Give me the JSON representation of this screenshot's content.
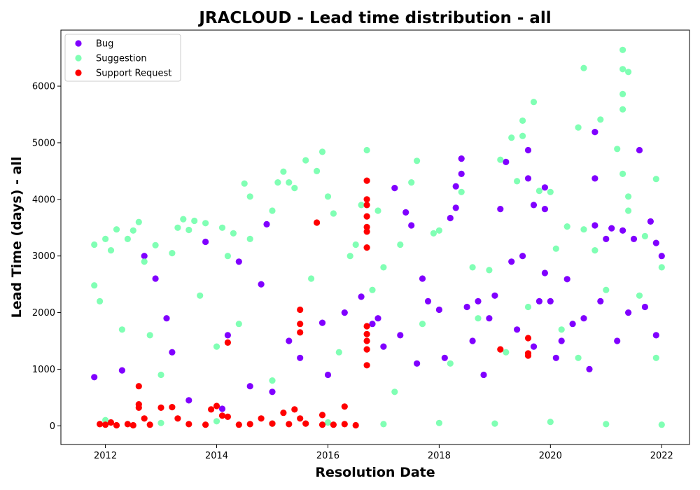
{
  "chart_data": {
    "type": "scatter",
    "title": "JRACLOUD - Lead time distribution - all",
    "xlabel": "Resolution Date",
    "ylabel": "Lead Time (days) - all",
    "xlim": [
      2011.2,
      2022.5
    ],
    "ylim": [
      -330,
      6990
    ],
    "x_ticks": [
      2012,
      2014,
      2016,
      2018,
      2020,
      2022
    ],
    "y_ticks": [
      0,
      1000,
      2000,
      3000,
      4000,
      5000,
      6000
    ],
    "grid": false,
    "legend_position": "upper-left",
    "series": [
      {
        "name": "Bug",
        "color": "#8000ff",
        "points": [
          [
            2011.8,
            860
          ],
          [
            2012.3,
            980
          ],
          [
            2012.7,
            3000
          ],
          [
            2012.9,
            2600
          ],
          [
            2013.1,
            1900
          ],
          [
            2013.2,
            1300
          ],
          [
            2013.8,
            3250
          ],
          [
            2014.2,
            1600
          ],
          [
            2014.4,
            2900
          ],
          [
            2014.8,
            2500
          ],
          [
            2014.9,
            3560
          ],
          [
            2015.3,
            1500
          ],
          [
            2015.9,
            1820
          ],
          [
            2016.3,
            2000
          ],
          [
            2016.6,
            2280
          ],
          [
            2016.9,
            1900
          ],
          [
            2017.2,
            4200
          ],
          [
            2017.4,
            3770
          ],
          [
            2017.5,
            3540
          ],
          [
            2017.7,
            2600
          ],
          [
            2017.8,
            2200
          ],
          [
            2018.0,
            2050
          ],
          [
            2018.2,
            3670
          ],
          [
            2018.3,
            3850
          ],
          [
            2018.3,
            4230
          ],
          [
            2018.4,
            4720
          ],
          [
            2018.4,
            4450
          ],
          [
            2018.5,
            2100
          ],
          [
            2018.7,
            2200
          ],
          [
            2018.9,
            1900
          ],
          [
            2019.0,
            2300
          ],
          [
            2019.1,
            3830
          ],
          [
            2019.2,
            4660
          ],
          [
            2019.3,
            2900
          ],
          [
            2019.5,
            3000
          ],
          [
            2019.6,
            4870
          ],
          [
            2019.6,
            4370
          ],
          [
            2019.7,
            3900
          ],
          [
            2019.8,
            2200
          ],
          [
            2019.9,
            4210
          ],
          [
            2019.9,
            3830
          ],
          [
            2019.9,
            2700
          ],
          [
            2020.0,
            2200
          ],
          [
            2020.2,
            1500
          ],
          [
            2020.3,
            2590
          ],
          [
            2020.6,
            1900
          ],
          [
            2020.8,
            5190
          ],
          [
            2020.8,
            4370
          ],
          [
            2020.8,
            3540
          ],
          [
            2020.9,
            2200
          ],
          [
            2021.0,
            3300
          ],
          [
            2021.1,
            3490
          ],
          [
            2021.3,
            3450
          ],
          [
            2021.6,
            4870
          ],
          [
            2021.8,
            3610
          ],
          [
            2021.9,
            3230
          ],
          [
            2022.0,
            3000
          ],
          [
            2021.5,
            3300
          ],
          [
            2021.7,
            2100
          ],
          [
            2013.5,
            450
          ],
          [
            2014.1,
            300
          ],
          [
            2014.6,
            700
          ],
          [
            2015.0,
            600
          ],
          [
            2015.5,
            1200
          ],
          [
            2016.0,
            900
          ],
          [
            2016.8,
            1800
          ],
          [
            2017.0,
            1400
          ],
          [
            2017.3,
            1600
          ],
          [
            2017.6,
            1100
          ],
          [
            2018.1,
            1200
          ],
          [
            2018.6,
            1500
          ],
          [
            2018.8,
            900
          ],
          [
            2019.4,
            1700
          ],
          [
            2019.7,
            1400
          ],
          [
            2020.1,
            1200
          ],
          [
            2020.4,
            1800
          ],
          [
            2020.7,
            1000
          ],
          [
            2021.2,
            1500
          ],
          [
            2021.4,
            2000
          ],
          [
            2021.9,
            1600
          ]
        ]
      },
      {
        "name": "Suggestion",
        "color": "#80ffb4",
        "points": [
          [
            2011.8,
            3200
          ],
          [
            2011.8,
            2480
          ],
          [
            2011.9,
            2200
          ],
          [
            2012.0,
            3300
          ],
          [
            2012.1,
            3100
          ],
          [
            2012.2,
            3470
          ],
          [
            2012.4,
            3300
          ],
          [
            2012.5,
            3450
          ],
          [
            2012.6,
            3600
          ],
          [
            2012.7,
            2900
          ],
          [
            2012.9,
            3190
          ],
          [
            2013.2,
            3050
          ],
          [
            2013.3,
            3500
          ],
          [
            2013.4,
            3650
          ],
          [
            2013.5,
            3460
          ],
          [
            2013.6,
            3620
          ],
          [
            2013.8,
            3580
          ],
          [
            2014.1,
            3500
          ],
          [
            2014.2,
            3000
          ],
          [
            2014.3,
            3400
          ],
          [
            2014.5,
            4280
          ],
          [
            2014.6,
            4050
          ],
          [
            2014.6,
            3300
          ],
          [
            2015.0,
            3800
          ],
          [
            2015.1,
            4300
          ],
          [
            2015.2,
            4490
          ],
          [
            2015.3,
            4300
          ],
          [
            2015.4,
            4200
          ],
          [
            2015.6,
            4690
          ],
          [
            2015.8,
            4500
          ],
          [
            2015.9,
            4840
          ],
          [
            2016.0,
            4050
          ],
          [
            2016.1,
            3750
          ],
          [
            2016.4,
            3000
          ],
          [
            2016.5,
            3200
          ],
          [
            2016.6,
            3900
          ],
          [
            2016.7,
            4870
          ],
          [
            2016.9,
            3800
          ],
          [
            2017.0,
            2800
          ],
          [
            2017.3,
            3200
          ],
          [
            2017.6,
            4680
          ],
          [
            2017.5,
            4300
          ],
          [
            2017.9,
            3400
          ],
          [
            2018.0,
            3450
          ],
          [
            2018.4,
            4130
          ],
          [
            2018.6,
            2800
          ],
          [
            2018.9,
            2750
          ],
          [
            2019.1,
            4700
          ],
          [
            2019.3,
            5090
          ],
          [
            2019.4,
            4320
          ],
          [
            2019.5,
            5390
          ],
          [
            2019.5,
            5120
          ],
          [
            2019.7,
            5720
          ],
          [
            2019.8,
            4150
          ],
          [
            2020.0,
            4130
          ],
          [
            2020.1,
            3130
          ],
          [
            2020.3,
            3520
          ],
          [
            2020.5,
            5270
          ],
          [
            2020.6,
            6320
          ],
          [
            2020.6,
            3470
          ],
          [
            2020.9,
            5410
          ],
          [
            2020.8,
            3100
          ],
          [
            2021.2,
            4890
          ],
          [
            2021.3,
            6640
          ],
          [
            2021.3,
            6300
          ],
          [
            2021.3,
            5860
          ],
          [
            2021.3,
            5590
          ],
          [
            2021.3,
            4450
          ],
          [
            2021.4,
            6250
          ],
          [
            2021.4,
            4050
          ],
          [
            2021.4,
            3800
          ],
          [
            2021.7,
            3350
          ],
          [
            2021.9,
            4360
          ],
          [
            2022.0,
            2800
          ],
          [
            2012.3,
            1700
          ],
          [
            2012.8,
            1600
          ],
          [
            2013.0,
            900
          ],
          [
            2013.7,
            2300
          ],
          [
            2014.0,
            1400
          ],
          [
            2014.4,
            1800
          ],
          [
            2015.0,
            800
          ],
          [
            2015.7,
            2600
          ],
          [
            2016.2,
            1300
          ],
          [
            2016.8,
            2400
          ],
          [
            2017.2,
            600
          ],
          [
            2017.7,
            1800
          ],
          [
            2018.2,
            1100
          ],
          [
            2018.7,
            1900
          ],
          [
            2019.2,
            1300
          ],
          [
            2019.6,
            2100
          ],
          [
            2020.2,
            1700
          ],
          [
            2020.5,
            1200
          ],
          [
            2021.0,
            2400
          ],
          [
            2021.6,
            2300
          ],
          [
            2021.9,
            1200
          ],
          [
            2012.0,
            100
          ],
          [
            2013.0,
            50
          ],
          [
            2014.0,
            80
          ],
          [
            2015.0,
            40
          ],
          [
            2016.0,
            60
          ],
          [
            2017.0,
            30
          ],
          [
            2018.0,
            50
          ],
          [
            2019.0,
            40
          ],
          [
            2020.0,
            70
          ],
          [
            2021.0,
            30
          ],
          [
            2022.0,
            20
          ]
        ]
      },
      {
        "name": "Support Request",
        "color": "#ff0000",
        "points": [
          [
            2011.9,
            30
          ],
          [
            2012.0,
            20
          ],
          [
            2012.1,
            60
          ],
          [
            2012.2,
            10
          ],
          [
            2012.4,
            30
          ],
          [
            2012.5,
            10
          ],
          [
            2012.6,
            700
          ],
          [
            2012.6,
            320
          ],
          [
            2012.6,
            380
          ],
          [
            2012.7,
            130
          ],
          [
            2012.8,
            20
          ],
          [
            2013.0,
            320
          ],
          [
            2013.2,
            330
          ],
          [
            2013.3,
            130
          ],
          [
            2013.5,
            30
          ],
          [
            2013.8,
            20
          ],
          [
            2013.9,
            290
          ],
          [
            2014.0,
            350
          ],
          [
            2014.1,
            180
          ],
          [
            2014.2,
            1470
          ],
          [
            2014.2,
            160
          ],
          [
            2014.4,
            20
          ],
          [
            2014.6,
            30
          ],
          [
            2014.8,
            130
          ],
          [
            2015.0,
            40
          ],
          [
            2015.2,
            230
          ],
          [
            2015.3,
            30
          ],
          [
            2015.4,
            290
          ],
          [
            2015.5,
            2050
          ],
          [
            2015.5,
            1800
          ],
          [
            2015.5,
            1650
          ],
          [
            2015.5,
            130
          ],
          [
            2015.6,
            40
          ],
          [
            2015.8,
            3590
          ],
          [
            2015.9,
            190
          ],
          [
            2015.9,
            20
          ],
          [
            2016.1,
            20
          ],
          [
            2016.3,
            30
          ],
          [
            2016.3,
            340
          ],
          [
            2016.5,
            10
          ],
          [
            2016.7,
            4330
          ],
          [
            2016.7,
            4000
          ],
          [
            2016.7,
            3900
          ],
          [
            2016.7,
            3700
          ],
          [
            2016.7,
            3510
          ],
          [
            2016.7,
            3430
          ],
          [
            2016.7,
            3150
          ],
          [
            2016.7,
            1760
          ],
          [
            2016.7,
            1620
          ],
          [
            2016.7,
            1500
          ],
          [
            2016.7,
            1350
          ],
          [
            2016.7,
            1070
          ],
          [
            2019.1,
            1350
          ],
          [
            2019.6,
            1550
          ],
          [
            2019.6,
            1280
          ],
          [
            2019.6,
            1240
          ]
        ]
      }
    ]
  }
}
